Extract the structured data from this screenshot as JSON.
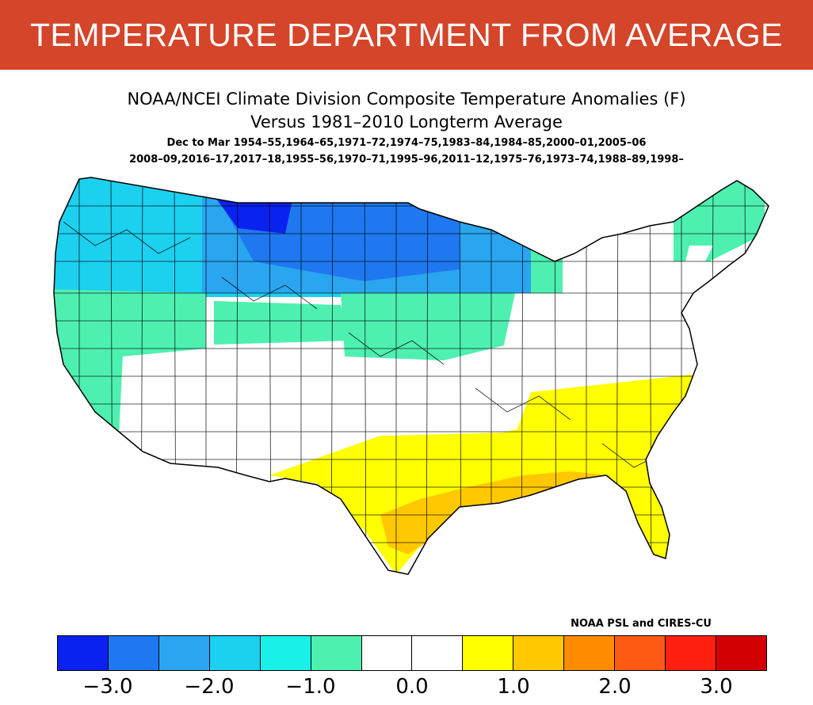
{
  "banner": {
    "title": "TEMPERATURE DEPARTMENT FROM AVERAGE",
    "background": "#d4452a"
  },
  "header": {
    "line1": "NOAA/NCEI Climate Division Composite Temperature Anomalies (F)",
    "line2": "Versus 1981–2010 Longterm Average",
    "line3": "Dec to Mar  1954–55,1964–65,1971–72,1974–75,1983–84,1984–85,2000–01,2005–06",
    "line4": "2008–09,2016–17,2017–18,1955–56,1970–71,1995–96,2011–12,1975–76,1973–74,1988–89,1998–"
  },
  "credit": "NOAA PSL and CIRES-CU",
  "legend": {
    "colors": [
      "#0a22f0",
      "#1f78f0",
      "#2aa5f0",
      "#1cd0f0",
      "#19f0e8",
      "#4ef0b0",
      "#ffffff",
      "#ffffff",
      "#ffff00",
      "#ffc800",
      "#ff8c00",
      "#ff5a14",
      "#ff2010",
      "#d20000"
    ],
    "ticks": [
      "−3.0",
      "−2.0",
      "−1.0",
      "0.0",
      "1.0",
      "2.0",
      "3.0"
    ]
  },
  "map": {
    "regions": [
      {
        "name": "northern-rockies-core",
        "color": "#1f78f0"
      },
      {
        "name": "montana-core",
        "color": "#0a22f0"
      },
      {
        "name": "northern-plains",
        "color": "#2aa5f0"
      },
      {
        "name": "pacific-northwest",
        "color": "#1cd0f0"
      },
      {
        "name": "intermountain-west",
        "color": "#4ef0b0"
      },
      {
        "name": "upper-midwest",
        "color": "#4ef0b0"
      },
      {
        "name": "southeast",
        "color": "#ffff00"
      },
      {
        "name": "gulf-coast",
        "color": "#ffc800"
      },
      {
        "name": "texas",
        "color": "#ffff00"
      },
      {
        "name": "new-england-north",
        "color": "#4ef0b0"
      }
    ]
  }
}
